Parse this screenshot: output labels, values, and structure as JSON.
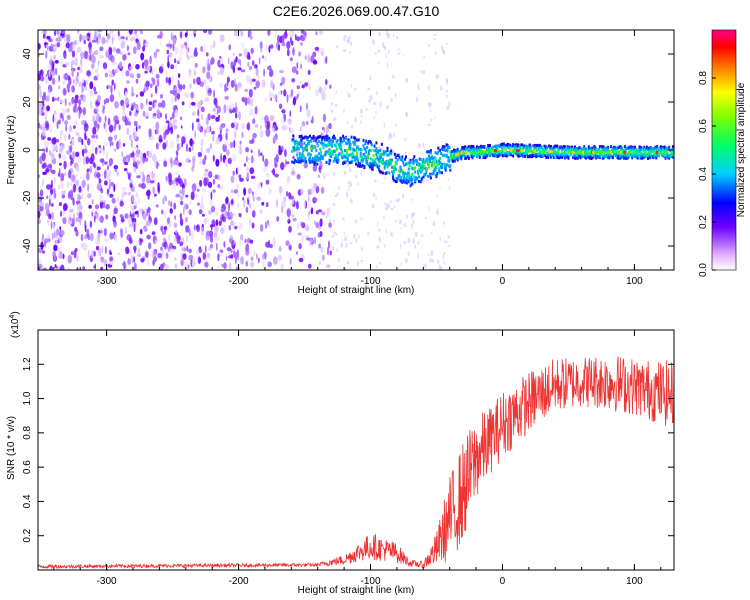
{
  "chart_data": [
    {
      "type": "heatmap",
      "title": "C2E6.2026.069.00.47.G10",
      "xlabel": "Height of straight line (km)",
      "ylabel": "Frequency (Hz)",
      "xlim": [
        -352,
        130
      ],
      "ylim": [
        -50,
        50
      ],
      "x_ticks": [
        -300,
        -200,
        -100,
        0,
        100
      ],
      "x_tick_labels": [
        "-300",
        "-200",
        "-100",
        "0",
        "100"
      ],
      "y_ticks": [
        -40,
        -20,
        0,
        20,
        40
      ],
      "y_tick_labels": [
        "-40",
        "-20",
        "0",
        "20",
        "40"
      ],
      "colorbar": {
        "label": "Normalized spectral amplitude",
        "range": [
          0.0,
          1.0
        ],
        "ticks": [
          0.0,
          0.2,
          0.4,
          0.6,
          0.8
        ],
        "tick_labels": [
          "0.0",
          "0.2",
          "0.4",
          "0.6",
          "0.8"
        ]
      },
      "ridge_centerline": [
        {
          "x": -160,
          "y": 0
        },
        {
          "x": -140,
          "y": 0
        },
        {
          "x": -120,
          "y": 0
        },
        {
          "x": -100,
          "y": -2
        },
        {
          "x": -90,
          "y": -4
        },
        {
          "x": -80,
          "y": -8
        },
        {
          "x": -70,
          "y": -9
        },
        {
          "x": -60,
          "y": -7
        },
        {
          "x": -50,
          "y": -5
        },
        {
          "x": -40,
          "y": -3
        },
        {
          "x": -30,
          "y": -1
        },
        {
          "x": -20,
          "y": -1
        },
        {
          "x": 0,
          "y": 0
        },
        {
          "x": 50,
          "y": -1
        },
        {
          "x": 100,
          "y": -1
        },
        {
          "x": 130,
          "y": -1
        }
      ],
      "scatter_region": {
        "x": [
          -352,
          -130
        ],
        "y": [
          -50,
          50
        ]
      }
    },
    {
      "type": "line",
      "xlabel": "Height of straight line (km)",
      "ylabel": "SNR (10 * v/v)",
      "y_multiplier": "(x10",
      "y_multiplier_exp": "4",
      "y_multiplier_close": ")",
      "xlim": [
        -352,
        130
      ],
      "ylim": [
        0,
        1.4
      ],
      "x_ticks": [
        -300,
        -200,
        -100,
        0,
        100
      ],
      "x_tick_labels": [
        "-300",
        "-200",
        "-100",
        "0",
        "100"
      ],
      "y_ticks": [
        0.2,
        0.4,
        0.6,
        0.8,
        1.0,
        1.2
      ],
      "y_tick_labels": [
        "0.2",
        "0.4",
        "0.6",
        "0.8",
        "1.0",
        "1.2"
      ],
      "color": "#ee3333",
      "series_envelope": [
        {
          "x": -352,
          "mean": 0.02,
          "amp": 0.01
        },
        {
          "x": -140,
          "mean": 0.03,
          "amp": 0.01
        },
        {
          "x": -120,
          "mean": 0.06,
          "amp": 0.03
        },
        {
          "x": -100,
          "mean": 0.14,
          "amp": 0.08
        },
        {
          "x": -80,
          "mean": 0.1,
          "amp": 0.06
        },
        {
          "x": -70,
          "mean": 0.04,
          "amp": 0.02
        },
        {
          "x": -60,
          "mean": 0.03,
          "amp": 0.02
        },
        {
          "x": -50,
          "mean": 0.12,
          "amp": 0.1
        },
        {
          "x": -40,
          "mean": 0.3,
          "amp": 0.25
        },
        {
          "x": -30,
          "mean": 0.45,
          "amp": 0.3
        },
        {
          "x": -20,
          "mean": 0.65,
          "amp": 0.25
        },
        {
          "x": -10,
          "mean": 0.75,
          "amp": 0.2
        },
        {
          "x": 0,
          "mean": 0.85,
          "amp": 0.2
        },
        {
          "x": 20,
          "mean": 0.98,
          "amp": 0.18
        },
        {
          "x": 40,
          "mean": 1.08,
          "amp": 0.16
        },
        {
          "x": 60,
          "mean": 1.1,
          "amp": 0.15
        },
        {
          "x": 80,
          "mean": 1.1,
          "amp": 0.17
        },
        {
          "x": 100,
          "mean": 1.07,
          "amp": 0.17
        },
        {
          "x": 130,
          "mean": 1.02,
          "amp": 0.2
        }
      ]
    }
  ]
}
